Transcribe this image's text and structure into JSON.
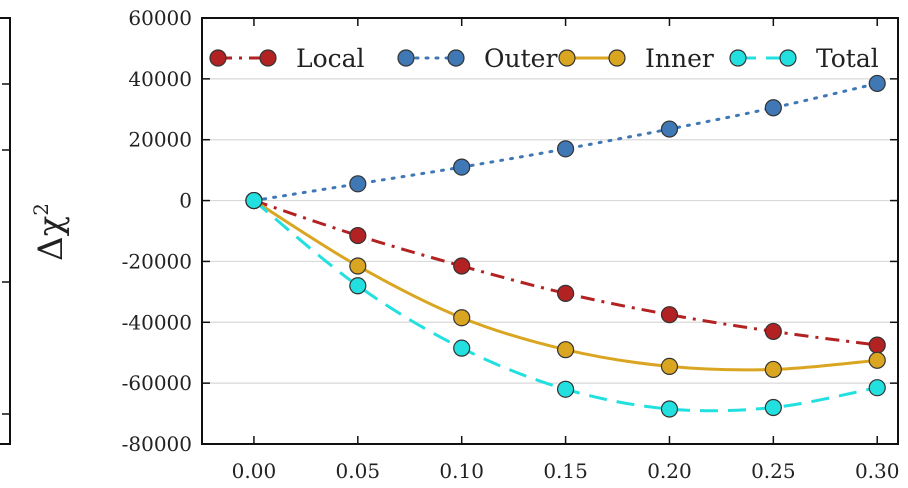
{
  "chart_data": {
    "type": "line",
    "title": "",
    "xlabel": "",
    "ylabel": "Δχ",
    "ylabel_superscript": "2",
    "x": [
      0.0,
      0.05,
      0.1,
      0.15,
      0.2,
      0.25,
      0.3
    ],
    "x_tick_labels": [
      "0.00",
      "0.05",
      "0.10",
      "0.15",
      "0.20",
      "0.25",
      "0.30"
    ],
    "y_tick_labels": [
      "60000",
      "40000",
      "20000",
      "0",
      "-20000",
      "-40000",
      "-60000",
      "-80000"
    ],
    "y_ticks": [
      60000,
      40000,
      20000,
      0,
      -20000,
      -40000,
      -60000,
      -80000
    ],
    "xlim": [
      -0.025,
      0.31
    ],
    "ylim": [
      -80000,
      60000
    ],
    "grid": "horizontal",
    "legend_placement": "top",
    "series": [
      {
        "name": "Local",
        "color": "#b22222",
        "linestyle": "dashdot",
        "values": [
          0,
          -11500,
          -21500,
          -30500,
          -37500,
          -43000,
          -47500
        ]
      },
      {
        "name": "Outer",
        "color": "#3f78b5",
        "linestyle": "dotted",
        "values": [
          0,
          5500,
          11000,
          17000,
          23500,
          30500,
          38500
        ]
      },
      {
        "name": "Inner",
        "color": "#daa520",
        "linestyle": "solid",
        "values": [
          0,
          -21500,
          -38500,
          -49000,
          -54500,
          -55500,
          -52500
        ]
      },
      {
        "name": "Total",
        "color": "#22e0e0",
        "linestyle": "dashed",
        "values": [
          0,
          -28000,
          -48500,
          -62000,
          -68500,
          -68000,
          -61500
        ]
      }
    ]
  }
}
